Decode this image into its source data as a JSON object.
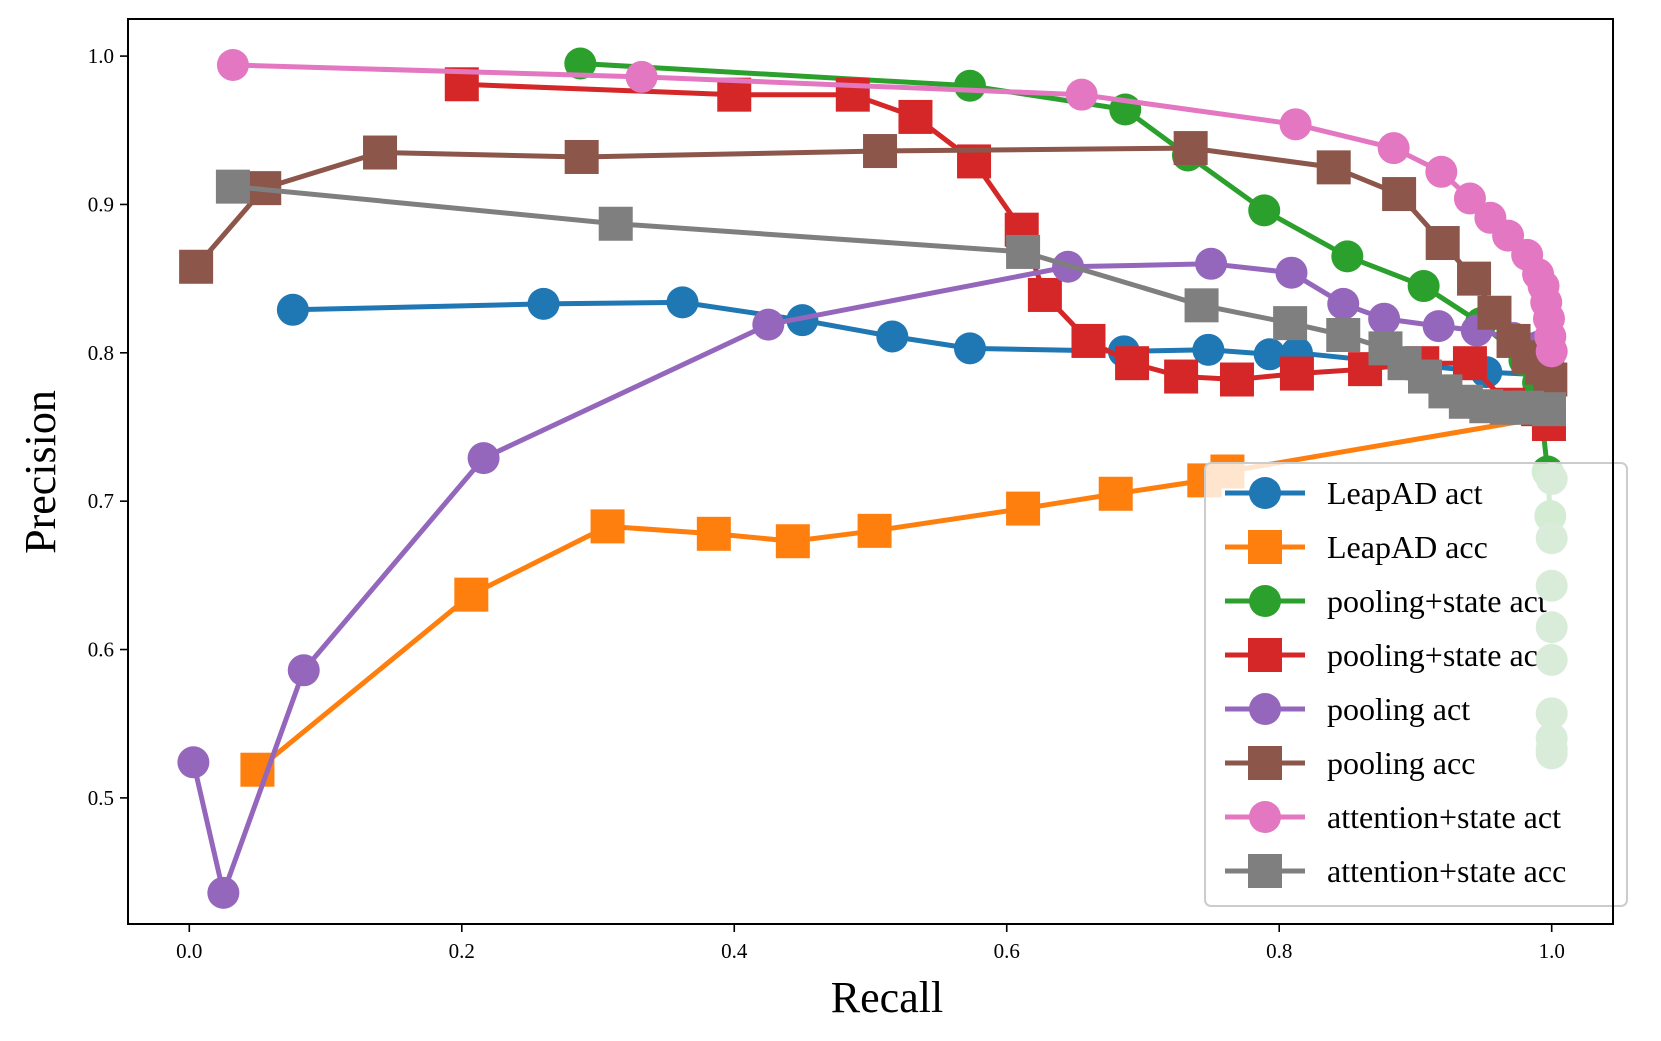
{
  "chart_data": {
    "type": "line",
    "title": "",
    "xlabel": "Recall",
    "ylabel": "Precision",
    "xlim": [
      -0.045,
      1.045
    ],
    "ylim": [
      0.415,
      1.025
    ],
    "xticks": [
      0.0,
      0.2,
      0.4,
      0.6,
      0.8,
      1.0
    ],
    "xtick_labels": [
      "0.0",
      "0.2",
      "0.4",
      "0.6",
      "0.8",
      "1.0"
    ],
    "yticks": [
      0.5,
      0.6,
      0.7,
      0.8,
      0.9,
      1.0
    ],
    "ytick_labels": [
      "0.5",
      "0.6",
      "0.7",
      "0.8",
      "0.9",
      "1.0"
    ],
    "grid": false,
    "legend_position": "lower-right",
    "series": [
      {
        "name": "LeapAD act",
        "color": "#1f77b4",
        "marker": "circle",
        "x": [
          0.076,
          0.26,
          0.362,
          0.45,
          0.516,
          0.573,
          0.686,
          0.748,
          0.793,
          0.813,
          0.952,
          0.998
        ],
        "y": [
          0.829,
          0.833,
          0.834,
          0.822,
          0.811,
          0.803,
          0.801,
          0.802,
          0.799,
          0.8,
          0.787,
          0.785
        ]
      },
      {
        "name": "LeapAD acc",
        "color": "#ff7f0e",
        "marker": "square",
        "x": [
          0.05,
          0.207,
          0.307,
          0.385,
          0.443,
          0.503,
          0.612,
          0.68,
          0.745,
          0.762,
          0.998
        ],
        "y": [
          0.519,
          0.637,
          0.683,
          0.678,
          0.673,
          0.68,
          0.695,
          0.705,
          0.714,
          0.72,
          0.757
        ]
      },
      {
        "name": "pooling+state act",
        "color": "#2ca02c",
        "marker": "circle",
        "x": [
          0.287,
          0.573,
          0.687,
          0.733,
          0.789,
          0.85,
          0.906,
          0.948,
          0.98,
          0.99,
          0.997,
          0.999
        ],
        "y": [
          0.995,
          0.98,
          0.964,
          0.933,
          0.896,
          0.865,
          0.845,
          0.82,
          0.795,
          0.78,
          0.72,
          0.69
        ]
      },
      {
        "name": "pooling+state acc",
        "color": "#d62728",
        "marker": "square",
        "x": [
          0.2,
          0.4,
          0.487,
          0.533,
          0.576,
          0.611,
          0.628,
          0.66,
          0.692,
          0.728,
          0.769,
          0.813,
          0.863,
          0.905,
          0.94,
          0.968,
          0.99,
          0.998
        ],
        "y": [
          0.981,
          0.974,
          0.974,
          0.959,
          0.929,
          0.883,
          0.839,
          0.808,
          0.793,
          0.784,
          0.782,
          0.786,
          0.789,
          0.793,
          0.793,
          0.765,
          0.762,
          0.752
        ]
      },
      {
        "name": "pooling act",
        "color": "#9467bd",
        "marker": "circle",
        "x": [
          0.003,
          0.025,
          0.084,
          0.216,
          0.425,
          0.645,
          0.75,
          0.809,
          0.847,
          0.877,
          0.917,
          0.945,
          0.972,
          0.99,
          0.998
        ],
        "y": [
          0.524,
          0.436,
          0.586,
          0.729,
          0.819,
          0.858,
          0.86,
          0.854,
          0.833,
          0.823,
          0.818,
          0.815,
          0.81,
          0.804,
          0.797
        ]
      },
      {
        "name": "pooling acc",
        "color": "#8c564b",
        "marker": "square",
        "x": [
          0.005,
          0.055,
          0.14,
          0.288,
          0.507,
          0.735,
          0.84,
          0.888,
          0.92,
          0.943,
          0.958,
          0.972,
          0.983,
          0.993,
          0.999
        ],
        "y": [
          0.858,
          0.911,
          0.935,
          0.932,
          0.936,
          0.938,
          0.925,
          0.907,
          0.874,
          0.85,
          0.827,
          0.808,
          0.797,
          0.79,
          0.782
        ]
      },
      {
        "name": "attention+state act",
        "color": "#e377c2",
        "marker": "circle",
        "x": [
          0.032,
          0.332,
          0.655,
          0.812,
          0.884,
          0.919,
          0.94,
          0.955,
          0.968,
          0.982,
          0.99,
          0.994,
          0.996,
          0.998,
          0.999,
          1.0
        ],
        "y": [
          0.994,
          0.986,
          0.974,
          0.954,
          0.938,
          0.922,
          0.904,
          0.891,
          0.879,
          0.866,
          0.853,
          0.845,
          0.834,
          0.823,
          0.811,
          0.801
        ]
      },
      {
        "name": "attention+state acc",
        "color": "#7f7f7f",
        "marker": "square",
        "x": [
          0.032,
          0.313,
          0.612,
          0.743,
          0.808,
          0.847,
          0.878,
          0.892,
          0.907,
          0.922,
          0.937,
          0.952,
          0.967,
          0.982,
          0.998
        ],
        "y": [
          0.912,
          0.887,
          0.868,
          0.832,
          0.82,
          0.812,
          0.803,
          0.793,
          0.784,
          0.774,
          0.767,
          0.764,
          0.763,
          0.763,
          0.762
        ]
      }
    ],
    "faded_points": {
      "color": "#d9ecd9",
      "x": [
        1.0,
        1.0,
        1.0,
        1.0,
        1.0,
        1.0,
        1.0,
        1.0,
        1.0
      ],
      "y": [
        0.715,
        0.675,
        0.643,
        0.615,
        0.593,
        0.557,
        0.54,
        0.533,
        0.53
      ]
    }
  }
}
